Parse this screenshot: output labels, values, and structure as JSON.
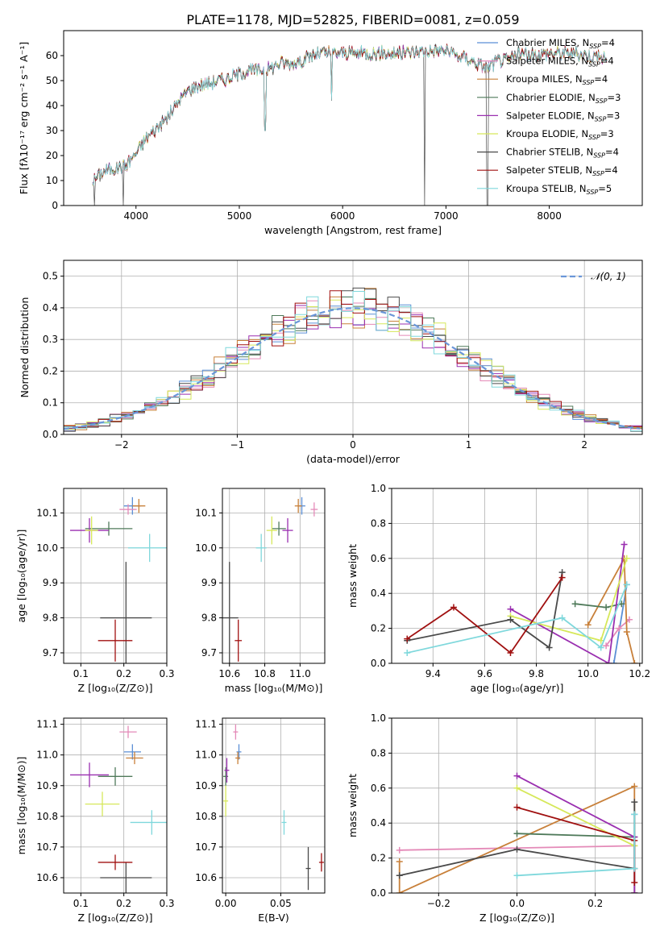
{
  "title": "PLATE=1178, MJD=52825, FIBERID=0081, z=0.059",
  "colors": {
    "Chabrier MILES": "#5b8fd6",
    "Salpeter MILES": "#e48ab8",
    "Kroupa MILES": "#c8803a",
    "Chabrier ELODIE": "#4f7a5a",
    "Salpeter ELODIE": "#9a2fb0",
    "Kroupa ELODIE": "#d6e85a",
    "Chabrier STELIB": "#4a4a4a",
    "Salpeter STELIB": "#a01010",
    "Kroupa STELIB": "#7fd8dc",
    "gauss": "#6a96d8"
  },
  "chart_data": [
    {
      "id": "spectrum",
      "type": "line",
      "title": "PLATE=1178, MJD=52825, FIBERID=0081, z=0.059",
      "xlabel": "wavelength [Angstrom, rest frame]",
      "ylabel": "Flux [fλ10⁻¹⁷ erg cm⁻² s⁻¹ A⁻¹]",
      "xlim": [
        3300,
        8900
      ],
      "ylim": [
        0,
        70
      ],
      "xticks": [
        4000,
        5000,
        6000,
        7000,
        8000
      ],
      "yticks": [
        0,
        10,
        20,
        30,
        40,
        50,
        60
      ],
      "grid": false,
      "legend_position": "top-right",
      "legend": [
        "Chabrier MILES, NSSP=4",
        "Salpeter MILES, NSSP=4",
        "Kroupa MILES, NSSP=4",
        "Chabrier ELODIE, NSSP=3",
        "Salpeter ELODIE, NSSP=3",
        "Kroupa ELODIE, NSSP=3",
        "Chabrier STELIB, NSSP=4",
        "Salpeter STELIB, NSSP=4",
        "Kroupa STELIB, NSSP=5"
      ],
      "continuum": {
        "x": [
          3580,
          3700,
          3800,
          3900,
          4000,
          4100,
          4200,
          4300,
          4400,
          4500,
          4600,
          4700,
          4800,
          4900,
          5000,
          5100,
          5200,
          5300,
          5400,
          5500,
          5600,
          5700,
          5800,
          5900,
          6000,
          6200,
          6400,
          6600,
          6800,
          7000,
          7100,
          7200,
          7300,
          7400,
          7500,
          7600,
          7700,
          7800,
          8000,
          8200,
          8400,
          8560
        ],
        "y": [
          10,
          14,
          15,
          16,
          21,
          27,
          31,
          35,
          41,
          46,
          48,
          49,
          50,
          51,
          53,
          54,
          54,
          55,
          57,
          57,
          58,
          60,
          61,
          61,
          61,
          61,
          61,
          61,
          62,
          62,
          60,
          59,
          57,
          55,
          58,
          58,
          61,
          60,
          61,
          61,
          60,
          59
        ]
      },
      "dips": [
        {
          "x": 3600,
          "y": 0
        },
        {
          "x": 3880,
          "y": 0
        },
        {
          "x": 5250,
          "y": 30
        },
        {
          "x": 5890,
          "y": 42
        },
        {
          "x": 6790,
          "y": 0
        },
        {
          "x": 7400,
          "y": 0
        }
      ]
    },
    {
      "id": "residuals",
      "type": "step",
      "xlabel": "(data-model)/error",
      "ylabel": "Normed distribution",
      "xlim": [
        -2.5,
        2.5
      ],
      "ylim": [
        0,
        0.55
      ],
      "xticks": [
        -2,
        -1,
        0,
        1,
        2
      ],
      "yticks": [
        0.0,
        0.1,
        0.2,
        0.3,
        0.4,
        0.5
      ],
      "grid": true,
      "legend_position": "top-right",
      "gauss_label": "𝒩(0, 1)"
    },
    {
      "id": "age-vs-z",
      "type": "scatter",
      "xlabel": "Z [log₁₀(Z/Z⊙)]",
      "ylabel": "age  [log₁₀(age/yr)]",
      "xlim": [
        0.06,
        0.3
      ],
      "ylim": [
        9.67,
        10.17
      ],
      "xticks": [
        0.1,
        0.2,
        0.3
      ],
      "yticks": [
        9.7,
        9.8,
        9.9,
        10.0,
        10.1
      ],
      "points": [
        {
          "s": "Chabrier MILES",
          "x": 0.22,
          "y": 10.12,
          "ex": 0.02,
          "ey": 0.025
        },
        {
          "s": "Salpeter MILES",
          "x": 0.21,
          "y": 10.11,
          "ex": 0.02,
          "ey": 0.015
        },
        {
          "s": "Kroupa MILES",
          "x": 0.235,
          "y": 10.12,
          "ex": 0.015,
          "ey": 0.02
        },
        {
          "s": "Chabrier ELODIE",
          "x": 0.165,
          "y": 10.055,
          "ex": 0.055,
          "ey": 0.02
        },
        {
          "s": "Salpeter ELODIE",
          "x": 0.12,
          "y": 10.05,
          "ex": 0.045,
          "ey": 0.035
        },
        {
          "s": "Kroupa ELODIE",
          "x": 0.125,
          "y": 10.05,
          "ex": 0.015,
          "ey": 0.04
        },
        {
          "s": "Kroupa STELIB",
          "x": 0.26,
          "y": 10.0,
          "ex": 0.05,
          "ey": 0.04
        },
        {
          "s": "Chabrier STELIB",
          "x": 0.205,
          "y": 9.8,
          "ex": 0.06,
          "ey": 0.16
        },
        {
          "s": "Salpeter STELIB",
          "x": 0.18,
          "y": 9.735,
          "ex": 0.04,
          "ey": 0.06
        }
      ]
    },
    {
      "id": "age-vs-mass",
      "type": "scatter",
      "xlabel": "mass [log₁₀(M/M⊙)]",
      "ylabel": "",
      "xlim": [
        10.56,
        11.14
      ],
      "ylim": [
        9.67,
        10.17
      ],
      "xticks": [
        10.6,
        10.8,
        11.0
      ],
      "yticks": [
        9.7,
        9.8,
        9.9,
        10.0,
        10.1
      ],
      "points": [
        {
          "s": "Chabrier MILES",
          "x": 11.01,
          "y": 10.12,
          "ex": 0.02,
          "ey": 0.025
        },
        {
          "s": "Salpeter MILES",
          "x": 11.08,
          "y": 10.11,
          "ex": 0.02,
          "ey": 0.02
        },
        {
          "s": "Kroupa MILES",
          "x": 10.99,
          "y": 10.12,
          "ex": 0.02,
          "ey": 0.02
        },
        {
          "s": "Chabrier ELODIE",
          "x": 10.88,
          "y": 10.055,
          "ex": 0.04,
          "ey": 0.02
        },
        {
          "s": "Salpeter ELODIE",
          "x": 10.93,
          "y": 10.05,
          "ex": 0.03,
          "ey": 0.035
        },
        {
          "s": "Kroupa ELODIE",
          "x": 10.84,
          "y": 10.05,
          "ex": 0.03,
          "ey": 0.04
        },
        {
          "s": "Kroupa STELIB",
          "x": 10.78,
          "y": 10.0,
          "ex": 0.03,
          "ey": 0.04
        },
        {
          "s": "Chabrier STELIB",
          "x": 10.6,
          "y": 9.8,
          "ex": 0.05,
          "ey": 0.16
        },
        {
          "s": "Salpeter STELIB",
          "x": 10.65,
          "y": 9.735,
          "ex": 0.02,
          "ey": 0.06
        }
      ]
    },
    {
      "id": "weight-vs-age",
      "type": "line",
      "xlabel": "age  [log₁₀(age/yr)]",
      "ylabel": "mass weight",
      "xlim": [
        9.24,
        10.21
      ],
      "ylim": [
        0,
        1
      ],
      "xticks": [
        9.4,
        9.6,
        9.8,
        10.0,
        10.2
      ],
      "yticks": [
        0.0,
        0.2,
        0.4,
        0.6,
        0.8,
        1.0
      ],
      "grid": true,
      "series": [
        {
          "s": "Chabrier MILES",
          "x": [
            10.15,
            10.1
          ],
          "y": [
            0.45,
            0.0
          ]
        },
        {
          "s": "Salpeter MILES",
          "x": [
            10.07,
            10.12,
            10.16
          ],
          "y": [
            0.1,
            0.2,
            0.25
          ]
        },
        {
          "s": "Kroupa MILES",
          "x": [
            10.0,
            10.14,
            10.15,
            10.18
          ],
          "y": [
            0.22,
            0.6,
            0.18,
            0.0
          ]
        },
        {
          "s": "Chabrier ELODIE",
          "x": [
            9.95,
            10.07,
            10.13
          ],
          "y": [
            0.34,
            0.32,
            0.34
          ]
        },
        {
          "s": "Salpeter ELODIE",
          "x": [
            9.7,
            10.08,
            10.14
          ],
          "y": [
            0.31,
            0.0,
            0.68
          ]
        },
        {
          "s": "Kroupa ELODIE",
          "x": [
            9.7,
            10.05,
            10.15
          ],
          "y": [
            0.27,
            0.13,
            0.6
          ]
        },
        {
          "s": "Chabrier STELIB",
          "x": [
            9.3,
            9.7,
            9.85,
            9.9
          ],
          "y": [
            0.13,
            0.25,
            0.09,
            0.52
          ]
        },
        {
          "s": "Salpeter STELIB",
          "x": [
            9.3,
            9.48,
            9.7,
            9.9
          ],
          "y": [
            0.14,
            0.32,
            0.06,
            0.49
          ]
        },
        {
          "s": "Kroupa STELIB",
          "x": [
            9.3,
            9.9,
            10.05,
            10.15
          ],
          "y": [
            0.06,
            0.26,
            0.09,
            0.45
          ]
        }
      ]
    },
    {
      "id": "mass-vs-z",
      "type": "scatter",
      "xlabel": "Z [log₁₀(Z/Z⊙)]",
      "ylabel": "mass [log₁₀(M/M⊙)]",
      "xlim": [
        0.06,
        0.3
      ],
      "ylim": [
        10.55,
        11.12
      ],
      "xticks": [
        0.1,
        0.2,
        0.3
      ],
      "yticks": [
        10.6,
        10.7,
        10.8,
        10.9,
        11.0,
        11.1
      ],
      "points": [
        {
          "s": "Chabrier MILES",
          "x": 0.22,
          "y": 11.01,
          "ex": 0.02,
          "ey": 0.025
        },
        {
          "s": "Salpeter MILES",
          "x": 0.21,
          "y": 11.075,
          "ex": 0.02,
          "ey": 0.02
        },
        {
          "s": "Kroupa MILES",
          "x": 0.225,
          "y": 10.99,
          "ex": 0.02,
          "ey": 0.02
        },
        {
          "s": "Chabrier ELODIE",
          "x": 0.18,
          "y": 10.93,
          "ex": 0.04,
          "ey": 0.03
        },
        {
          "s": "Salpeter ELODIE",
          "x": 0.12,
          "y": 10.935,
          "ex": 0.045,
          "ey": 0.04
        },
        {
          "s": "Kroupa ELODIE",
          "x": 0.15,
          "y": 10.84,
          "ex": 0.04,
          "ey": 0.04
        },
        {
          "s": "Kroupa STELIB",
          "x": 0.265,
          "y": 10.78,
          "ex": 0.05,
          "ey": 0.04
        },
        {
          "s": "Chabrier STELIB",
          "x": 0.205,
          "y": 10.6,
          "ex": 0.06,
          "ey": 0.05
        },
        {
          "s": "Salpeter STELIB",
          "x": 0.18,
          "y": 10.65,
          "ex": 0.04,
          "ey": 0.025
        }
      ]
    },
    {
      "id": "mass-vs-ebv",
      "type": "scatter",
      "xlabel": "E(B-V)",
      "ylabel": "",
      "xlim": [
        -0.003,
        0.09
      ],
      "ylim": [
        10.55,
        11.12
      ],
      "xticks": [
        0.0,
        0.05
      ],
      "yticks": [
        10.6,
        10.7,
        10.8,
        10.9,
        11.0,
        11.1
      ],
      "points": [
        {
          "s": "Chabrier MILES",
          "x": 0.012,
          "y": 11.01,
          "ey": 0.025
        },
        {
          "s": "Salpeter MILES",
          "x": 0.009,
          "y": 11.075,
          "ey": 0.025
        },
        {
          "s": "Kroupa MILES",
          "x": 0.011,
          "y": 10.99,
          "ey": 0.02
        },
        {
          "s": "Chabrier ELODIE",
          "x": 0.0,
          "y": 10.93,
          "ey": 0.03
        },
        {
          "s": "Salpeter ELODIE",
          "x": 0.001,
          "y": 10.95,
          "ey": 0.04
        },
        {
          "s": "Kroupa ELODIE",
          "x": 0.0,
          "y": 10.85,
          "ey": 0.05
        },
        {
          "s": "Kroupa STELIB",
          "x": 0.053,
          "y": 10.78,
          "ey": 0.04
        },
        {
          "s": "Chabrier STELIB",
          "x": 0.075,
          "y": 10.63,
          "ey": 0.07
        },
        {
          "s": "Salpeter STELIB",
          "x": 0.087,
          "y": 10.65,
          "ey": 0.03
        }
      ]
    },
    {
      "id": "weight-vs-z",
      "type": "line",
      "xlabel": "Z [log₁₀(Z/Z⊙)]",
      "ylabel": "mass weight",
      "xlim": [
        -0.32,
        0.32
      ],
      "ylim": [
        0,
        1
      ],
      "xticks": [
        -0.2,
        0.0,
        0.2
      ],
      "yticks": [
        0.0,
        0.2,
        0.4,
        0.6,
        0.8,
        1.0
      ],
      "grid": true,
      "series": [
        {
          "s": "Chabrier MILES",
          "x": [
            0.3,
            0.3
          ],
          "y": [
            0.45,
            0.0
          ]
        },
        {
          "s": "Salpeter MILES",
          "x": [
            -0.3,
            0.3
          ],
          "y": [
            0.245,
            0.27
          ]
        },
        {
          "s": "Kroupa MILES",
          "x": [
            -0.3,
            -0.3,
            0.3,
            0.3
          ],
          "y": [
            0.18,
            0.0,
            0.61,
            0.0
          ]
        },
        {
          "s": "Chabrier ELODIE",
          "x": [
            0.0,
            0.3
          ],
          "y": [
            0.34,
            0.32
          ]
        },
        {
          "s": "Salpeter ELODIE",
          "x": [
            0.0,
            0.3,
            0.3
          ],
          "y": [
            0.67,
            0.32,
            0.0
          ]
        },
        {
          "s": "Kroupa ELODIE",
          "x": [
            0.0,
            0.3
          ],
          "y": [
            0.6,
            0.27
          ]
        },
        {
          "s": "Chabrier STELIB",
          "x": [
            -0.3,
            0.0,
            0.3,
            0.3
          ],
          "y": [
            0.1,
            0.25,
            0.14,
            0.52
          ]
        },
        {
          "s": "Salpeter STELIB",
          "x": [
            0.0,
            0.3,
            0.3
          ],
          "y": [
            0.49,
            0.3,
            0.06
          ]
        },
        {
          "s": "Kroupa STELIB",
          "x": [
            0.0,
            0.3,
            0.3
          ],
          "y": [
            0.1,
            0.14,
            0.45
          ]
        }
      ]
    }
  ]
}
